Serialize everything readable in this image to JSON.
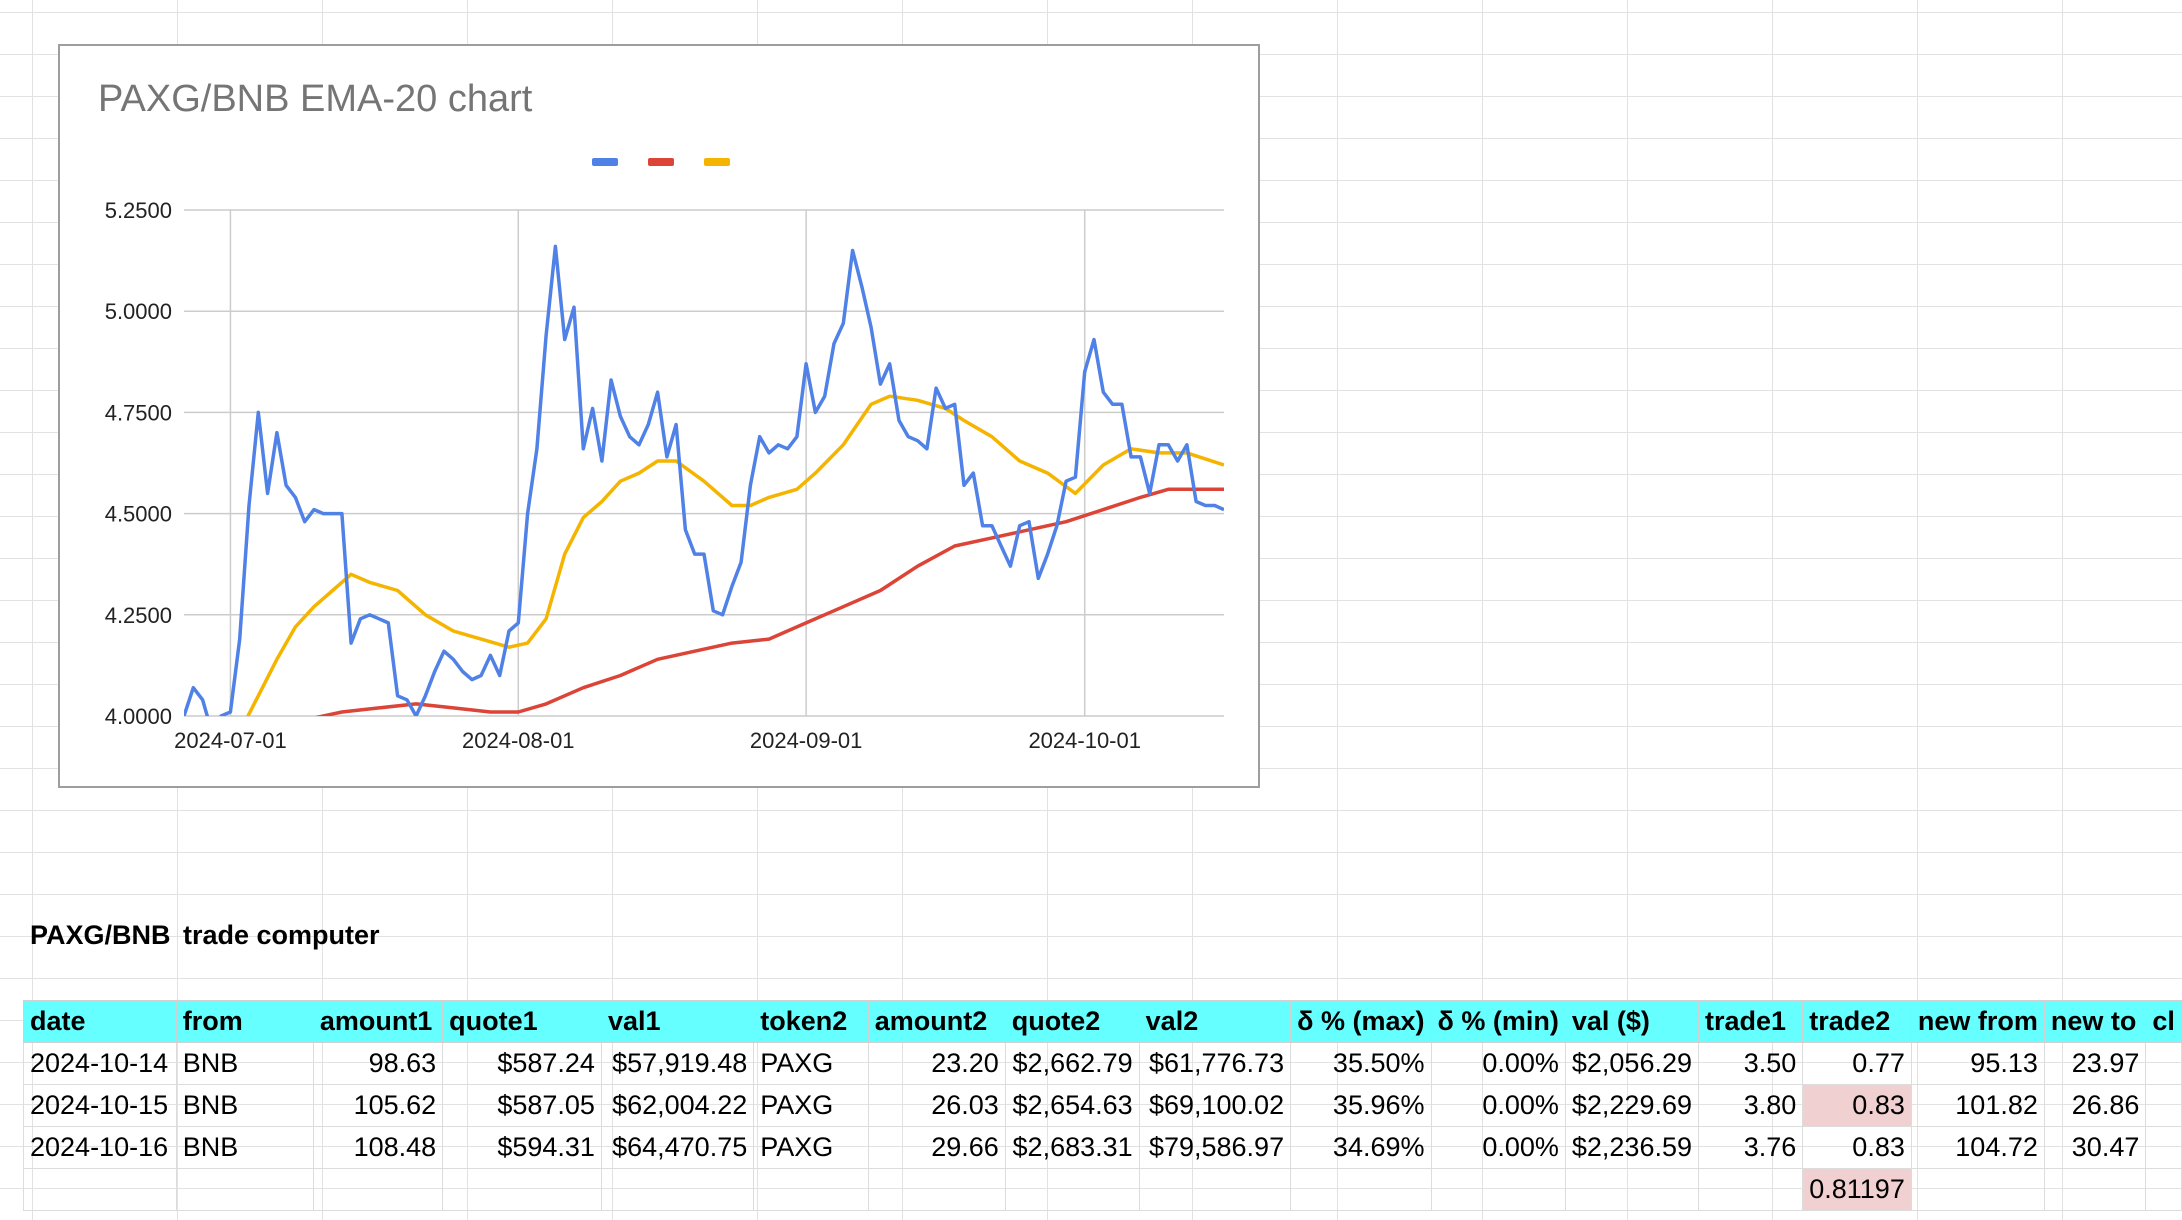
{
  "chart_data": {
    "type": "line",
    "title": "PAXG/BNB EMA-20 chart",
    "x_ticks": [
      "2024-07-01",
      "2024-08-01",
      "2024-09-01",
      "2024-10-01"
    ],
    "y_ticks": [
      "4.0000",
      "4.2500",
      "4.5000",
      "4.7500",
      "5.0000",
      "5.2500"
    ],
    "ylim": [
      4.0,
      5.25
    ],
    "xlim": [
      "2024-06-26",
      "2024-10-16"
    ],
    "grid": true,
    "legend_position": "top-center",
    "series": [
      {
        "color": "#4f81e6",
        "points": [
          [
            "2024-06-26",
            4.0
          ],
          [
            "2024-06-27",
            4.07
          ],
          [
            "2024-06-28",
            4.04
          ],
          [
            "2024-06-29",
            3.96
          ],
          [
            "2024-06-30",
            4.0
          ],
          [
            "2024-07-01",
            4.01
          ],
          [
            "2024-07-02",
            4.19
          ],
          [
            "2024-07-03",
            4.52
          ],
          [
            "2024-07-04",
            4.75
          ],
          [
            "2024-07-05",
            4.55
          ],
          [
            "2024-07-06",
            4.7
          ],
          [
            "2024-07-07",
            4.57
          ],
          [
            "2024-07-08",
            4.54
          ],
          [
            "2024-07-09",
            4.48
          ],
          [
            "2024-07-10",
            4.51
          ],
          [
            "2024-07-11",
            4.5
          ],
          [
            "2024-07-12",
            4.5
          ],
          [
            "2024-07-13",
            4.5
          ],
          [
            "2024-07-14",
            4.18
          ],
          [
            "2024-07-15",
            4.24
          ],
          [
            "2024-07-16",
            4.25
          ],
          [
            "2024-07-17",
            4.24
          ],
          [
            "2024-07-18",
            4.23
          ],
          [
            "2024-07-19",
            4.05
          ],
          [
            "2024-07-20",
            4.04
          ],
          [
            "2024-07-21",
            4.0
          ],
          [
            "2024-07-22",
            4.05
          ],
          [
            "2024-07-23",
            4.11
          ],
          [
            "2024-07-24",
            4.16
          ],
          [
            "2024-07-25",
            4.14
          ],
          [
            "2024-07-26",
            4.11
          ],
          [
            "2024-07-27",
            4.09
          ],
          [
            "2024-07-28",
            4.1
          ],
          [
            "2024-07-29",
            4.15
          ],
          [
            "2024-07-30",
            4.1
          ],
          [
            "2024-07-31",
            4.21
          ],
          [
            "2024-08-01",
            4.23
          ],
          [
            "2024-08-02",
            4.5
          ],
          [
            "2024-08-03",
            4.66
          ],
          [
            "2024-08-04",
            4.94
          ],
          [
            "2024-08-05",
            5.16
          ],
          [
            "2024-08-06",
            4.93
          ],
          [
            "2024-08-07",
            5.01
          ],
          [
            "2024-08-08",
            4.66
          ],
          [
            "2024-08-09",
            4.76
          ],
          [
            "2024-08-10",
            4.63
          ],
          [
            "2024-08-11",
            4.83
          ],
          [
            "2024-08-12",
            4.74
          ],
          [
            "2024-08-13",
            4.69
          ],
          [
            "2024-08-14",
            4.67
          ],
          [
            "2024-08-15",
            4.72
          ],
          [
            "2024-08-16",
            4.8
          ],
          [
            "2024-08-17",
            4.64
          ],
          [
            "2024-08-18",
            4.72
          ],
          [
            "2024-08-19",
            4.46
          ],
          [
            "2024-08-20",
            4.4
          ],
          [
            "2024-08-21",
            4.4
          ],
          [
            "2024-08-22",
            4.26
          ],
          [
            "2024-08-23",
            4.25
          ],
          [
            "2024-08-24",
            4.32
          ],
          [
            "2024-08-25",
            4.38
          ],
          [
            "2024-08-26",
            4.57
          ],
          [
            "2024-08-27",
            4.69
          ],
          [
            "2024-08-28",
            4.65
          ],
          [
            "2024-08-29",
            4.67
          ],
          [
            "2024-08-30",
            4.66
          ],
          [
            "2024-08-31",
            4.69
          ],
          [
            "2024-09-01",
            4.87
          ],
          [
            "2024-09-02",
            4.75
          ],
          [
            "2024-09-03",
            4.79
          ],
          [
            "2024-09-04",
            4.92
          ],
          [
            "2024-09-05",
            4.97
          ],
          [
            "2024-09-06",
            5.15
          ],
          [
            "2024-09-07",
            5.06
          ],
          [
            "2024-09-08",
            4.96
          ],
          [
            "2024-09-09",
            4.82
          ],
          [
            "2024-09-10",
            4.87
          ],
          [
            "2024-09-11",
            4.73
          ],
          [
            "2024-09-12",
            4.69
          ],
          [
            "2024-09-13",
            4.68
          ],
          [
            "2024-09-14",
            4.66
          ],
          [
            "2024-09-15",
            4.81
          ],
          [
            "2024-09-16",
            4.76
          ],
          [
            "2024-09-17",
            4.77
          ],
          [
            "2024-09-18",
            4.57
          ],
          [
            "2024-09-19",
            4.6
          ],
          [
            "2024-09-20",
            4.47
          ],
          [
            "2024-09-21",
            4.47
          ],
          [
            "2024-09-22",
            4.42
          ],
          [
            "2024-09-23",
            4.37
          ],
          [
            "2024-09-24",
            4.47
          ],
          [
            "2024-09-25",
            4.48
          ],
          [
            "2024-09-26",
            4.34
          ],
          [
            "2024-09-27",
            4.4
          ],
          [
            "2024-09-28",
            4.47
          ],
          [
            "2024-09-29",
            4.58
          ],
          [
            "2024-09-30",
            4.59
          ],
          [
            "2024-10-01",
            4.85
          ],
          [
            "2024-10-02",
            4.93
          ],
          [
            "2024-10-03",
            4.8
          ],
          [
            "2024-10-04",
            4.77
          ],
          [
            "2024-10-05",
            4.77
          ],
          [
            "2024-10-06",
            4.64
          ],
          [
            "2024-10-07",
            4.64
          ],
          [
            "2024-10-08",
            4.55
          ],
          [
            "2024-10-09",
            4.67
          ],
          [
            "2024-10-10",
            4.67
          ],
          [
            "2024-10-11",
            4.63
          ],
          [
            "2024-10-12",
            4.67
          ],
          [
            "2024-10-13",
            4.53
          ],
          [
            "2024-10-14",
            4.52
          ],
          [
            "2024-10-15",
            4.52
          ],
          [
            "2024-10-16",
            4.51
          ]
        ]
      },
      {
        "color": "#db4437",
        "points": [
          [
            "2024-07-01",
            3.97
          ],
          [
            "2024-07-05",
            3.97
          ],
          [
            "2024-07-09",
            3.99
          ],
          [
            "2024-07-13",
            4.01
          ],
          [
            "2024-07-17",
            4.02
          ],
          [
            "2024-07-21",
            4.03
          ],
          [
            "2024-07-25",
            4.02
          ],
          [
            "2024-07-29",
            4.01
          ],
          [
            "2024-08-01",
            4.01
          ],
          [
            "2024-08-04",
            4.03
          ],
          [
            "2024-08-08",
            4.07
          ],
          [
            "2024-08-12",
            4.1
          ],
          [
            "2024-08-16",
            4.14
          ],
          [
            "2024-08-20",
            4.16
          ],
          [
            "2024-08-24",
            4.18
          ],
          [
            "2024-08-28",
            4.19
          ],
          [
            "2024-09-01",
            4.23
          ],
          [
            "2024-09-05",
            4.27
          ],
          [
            "2024-09-09",
            4.31
          ],
          [
            "2024-09-13",
            4.37
          ],
          [
            "2024-09-17",
            4.42
          ],
          [
            "2024-09-21",
            4.44
          ],
          [
            "2024-09-25",
            4.46
          ],
          [
            "2024-09-29",
            4.48
          ],
          [
            "2024-10-03",
            4.51
          ],
          [
            "2024-10-07",
            4.54
          ],
          [
            "2024-10-10",
            4.56
          ],
          [
            "2024-10-13",
            4.56
          ],
          [
            "2024-10-16",
            4.56
          ]
        ]
      },
      {
        "color": "#f4b400",
        "points": [
          [
            "2024-07-02",
            3.96
          ],
          [
            "2024-07-04",
            4.05
          ],
          [
            "2024-07-06",
            4.14
          ],
          [
            "2024-07-08",
            4.22
          ],
          [
            "2024-07-10",
            4.27
          ],
          [
            "2024-07-12",
            4.31
          ],
          [
            "2024-07-14",
            4.35
          ],
          [
            "2024-07-16",
            4.33
          ],
          [
            "2024-07-19",
            4.31
          ],
          [
            "2024-07-22",
            4.25
          ],
          [
            "2024-07-25",
            4.21
          ],
          [
            "2024-07-28",
            4.19
          ],
          [
            "2024-07-31",
            4.17
          ],
          [
            "2024-08-02",
            4.18
          ],
          [
            "2024-08-04",
            4.24
          ],
          [
            "2024-08-06",
            4.4
          ],
          [
            "2024-08-08",
            4.49
          ],
          [
            "2024-08-10",
            4.53
          ],
          [
            "2024-08-12",
            4.58
          ],
          [
            "2024-08-14",
            4.6
          ],
          [
            "2024-08-16",
            4.63
          ],
          [
            "2024-08-18",
            4.63
          ],
          [
            "2024-08-21",
            4.58
          ],
          [
            "2024-08-24",
            4.52
          ],
          [
            "2024-08-26",
            4.52
          ],
          [
            "2024-08-28",
            4.54
          ],
          [
            "2024-08-31",
            4.56
          ],
          [
            "2024-09-02",
            4.6
          ],
          [
            "2024-09-05",
            4.67
          ],
          [
            "2024-09-08",
            4.77
          ],
          [
            "2024-09-10",
            4.79
          ],
          [
            "2024-09-13",
            4.78
          ],
          [
            "2024-09-16",
            4.76
          ],
          [
            "2024-09-18",
            4.73
          ],
          [
            "2024-09-21",
            4.69
          ],
          [
            "2024-09-24",
            4.63
          ],
          [
            "2024-09-27",
            4.6
          ],
          [
            "2024-09-30",
            4.55
          ],
          [
            "2024-10-03",
            4.62
          ],
          [
            "2024-10-06",
            4.66
          ],
          [
            "2024-10-09",
            4.65
          ],
          [
            "2024-10-12",
            4.65
          ],
          [
            "2024-10-16",
            4.62
          ]
        ]
      }
    ]
  },
  "sheet": {
    "section_title": [
      "PAXG/BNB",
      "trade computer"
    ],
    "headers": [
      "date",
      "from",
      "amount1",
      "quote1",
      "val1",
      "token2",
      "amount2",
      "quote2",
      "val2",
      "δ % (max)",
      "δ % (min)",
      "val ($)",
      "trade1",
      "trade2",
      "new from",
      "new to",
      "cl"
    ],
    "rows": [
      [
        "2024-10-14",
        "BNB",
        "98.63",
        "$587.24",
        "$57,919.48",
        "PAXG",
        "23.20",
        "$2,662.79",
        "$61,776.73",
        "35.50%",
        "0.00%",
        "$2,056.29",
        "3.50",
        "0.77",
        "95.13",
        "23.97",
        ""
      ],
      [
        "2024-10-15",
        "BNB",
        "105.62",
        "$587.05",
        "$62,004.22",
        "PAXG",
        "26.03",
        "$2,654.63",
        "$69,100.02",
        "35.96%",
        "0.00%",
        "$2,229.69",
        "3.80",
        "0.83",
        "101.82",
        "26.86",
        ""
      ],
      [
        "2024-10-16",
        "BNB",
        "108.48",
        "$594.31",
        "$64,470.75",
        "PAXG",
        "29.66",
        "$2,683.31",
        "$79,586.97",
        "34.69%",
        "0.00%",
        "$2,236.59",
        "3.76",
        "0.83",
        "104.72",
        "30.47",
        ""
      ],
      [
        "",
        "",
        "",
        "",
        "",
        "",
        "",
        "",
        "",
        "",
        "",
        "",
        "",
        "0.81197",
        "",
        "",
        ""
      ]
    ]
  }
}
